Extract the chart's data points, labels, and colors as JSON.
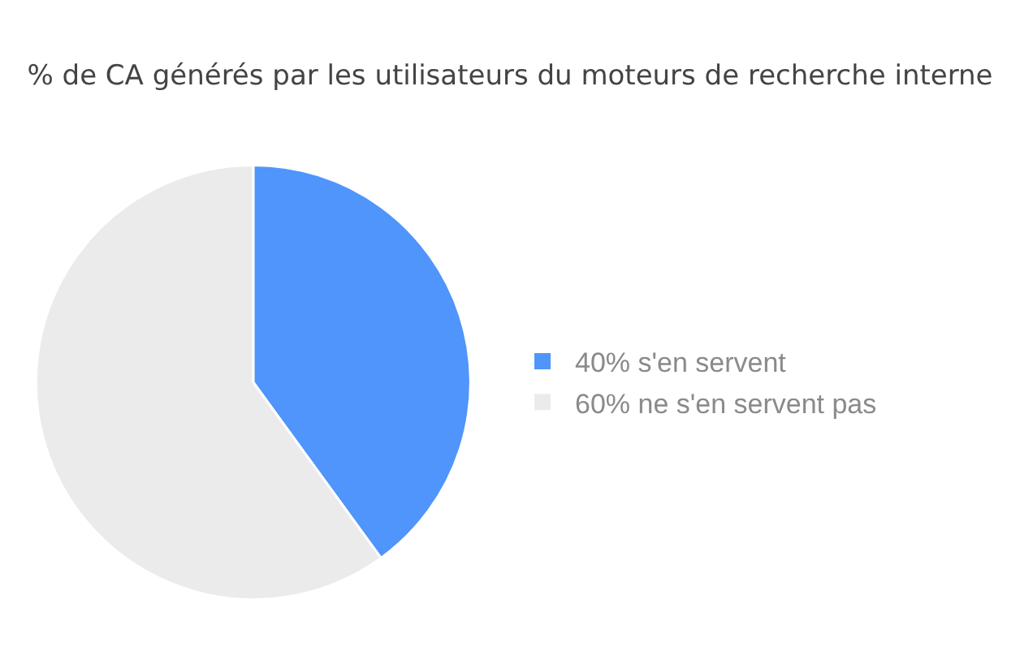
{
  "chart_data": {
    "type": "pie",
    "title": "% de CA générés par les utilisateurs du moteurs de recherche interne",
    "categories": [
      "40% s'en servent",
      "60% ne s'en servent pas"
    ],
    "values": [
      40,
      60
    ],
    "colors": [
      "#4f95fb",
      "#ebebeb"
    ],
    "legend": "right"
  }
}
